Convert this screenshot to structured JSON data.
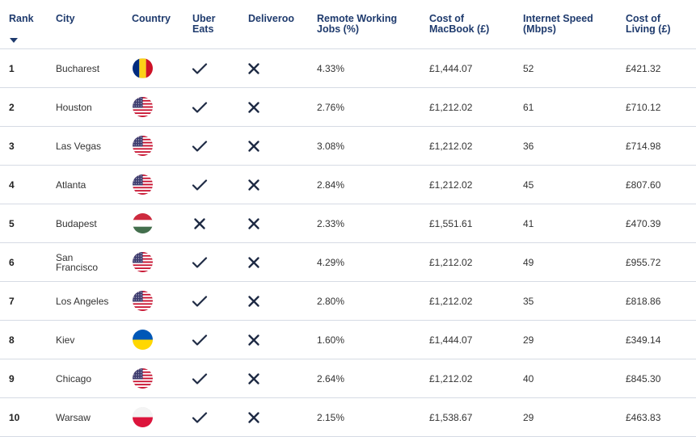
{
  "headers": {
    "rank": "Rank",
    "city": "City",
    "country": "Country",
    "uber": "Uber\nEats",
    "deliveroo": "Deliveroo",
    "remote": "Remote Working\nJobs (%)",
    "macbook": "Cost of\nMacBook (£)",
    "internet": "Internet Speed\n(Mbps)",
    "living": "Cost of\nLiving (£)"
  },
  "colors": {
    "header_text": "#1e3a6d",
    "mark": "#1e2a44",
    "divider": "#d6dbe4"
  },
  "rows": [
    {
      "rank": "1",
      "city": "Bucharest",
      "flag": "romania-flag-icon",
      "uber": true,
      "deliveroo": false,
      "remote": "4.33%",
      "macbook": "£1,444.07",
      "internet": "52",
      "living": "£421.32"
    },
    {
      "rank": "2",
      "city": "Houston",
      "flag": "usa-flag-icon",
      "uber": true,
      "deliveroo": false,
      "remote": "2.76%",
      "macbook": "£1,212.02",
      "internet": "61",
      "living": "£710.12"
    },
    {
      "rank": "3",
      "city": "Las Vegas",
      "flag": "usa-flag-icon",
      "uber": true,
      "deliveroo": false,
      "remote": "3.08%",
      "macbook": "£1,212.02",
      "internet": "36",
      "living": "£714.98"
    },
    {
      "rank": "4",
      "city": "Atlanta",
      "flag": "usa-flag-icon",
      "uber": true,
      "deliveroo": false,
      "remote": "2.84%",
      "macbook": "£1,212.02",
      "internet": "45",
      "living": "£807.60"
    },
    {
      "rank": "5",
      "city": "Budapest",
      "flag": "hungary-flag-icon",
      "uber": false,
      "deliveroo": false,
      "remote": "2.33%",
      "macbook": "£1,551.61",
      "internet": "41",
      "living": "£470.39"
    },
    {
      "rank": "6",
      "city": "San\nFrancisco",
      "flag": "usa-flag-icon",
      "uber": true,
      "deliveroo": false,
      "remote": "4.29%",
      "macbook": "£1,212.02",
      "internet": "49",
      "living": "£955.72"
    },
    {
      "rank": "7",
      "city": "Los Angeles",
      "flag": "usa-flag-icon",
      "uber": true,
      "deliveroo": false,
      "remote": "2.80%",
      "macbook": "£1,212.02",
      "internet": "35",
      "living": "£818.86"
    },
    {
      "rank": "8",
      "city": "Kiev",
      "flag": "ukraine-flag-icon",
      "uber": true,
      "deliveroo": false,
      "remote": "1.60%",
      "macbook": "£1,444.07",
      "internet": "29",
      "living": "£349.14"
    },
    {
      "rank": "9",
      "city": "Chicago",
      "flag": "usa-flag-icon",
      "uber": true,
      "deliveroo": false,
      "remote": "2.64%",
      "macbook": "£1,212.02",
      "internet": "40",
      "living": "£845.30"
    },
    {
      "rank": "10",
      "city": "Warsaw",
      "flag": "poland-flag-icon",
      "uber": true,
      "deliveroo": false,
      "remote": "2.15%",
      "macbook": "£1,538.67",
      "internet": "29",
      "living": "£463.83"
    }
  ]
}
